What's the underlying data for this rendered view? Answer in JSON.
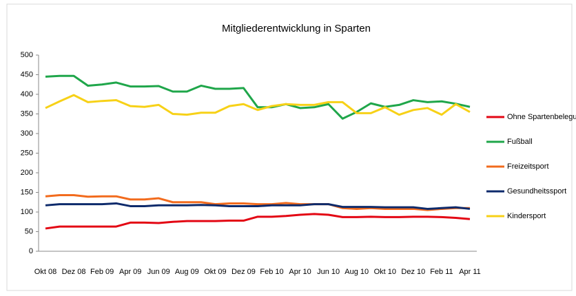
{
  "chart_data": {
    "type": "line",
    "title": "Mitgliederentwicklung in Sparten",
    "categories": [
      "Okt 08",
      null,
      "Dez 08",
      null,
      "Feb 09",
      null,
      "Apr 09",
      null,
      "Jun 09",
      null,
      "Aug 09",
      null,
      "Okt 09",
      null,
      "Dez 09",
      null,
      "Feb 10",
      null,
      "Apr 10",
      null,
      "Jun 10",
      null,
      "Aug 10",
      null,
      "Okt 10",
      null,
      "Dez 10",
      null,
      "Feb 11",
      null,
      "Apr 11"
    ],
    "series": [
      {
        "name": "Ohne Spartenbelegung",
        "color": "#e30613",
        "values": [
          58,
          63,
          63,
          63,
          63,
          63,
          73,
          73,
          72,
          75,
          77,
          77,
          77,
          78,
          78,
          88,
          88,
          90,
          93,
          95,
          93,
          87,
          87,
          88,
          87,
          87,
          88,
          88,
          87,
          85,
          82
        ]
      },
      {
        "name": "Fußball",
        "color": "#1fa64a",
        "values": [
          445,
          447,
          447,
          422,
          425,
          430,
          420,
          420,
          421,
          407,
          407,
          422,
          414,
          414,
          416,
          367,
          367,
          375,
          365,
          367,
          375,
          338,
          355,
          377,
          368,
          373,
          385,
          380,
          382,
          376,
          368
        ]
      },
      {
        "name": "Freizeitsport",
        "color": "#f26b1d",
        "values": [
          140,
          143,
          143,
          139,
          140,
          140,
          132,
          132,
          135,
          125,
          125,
          125,
          120,
          122,
          122,
          120,
          120,
          123,
          120,
          120,
          120,
          110,
          108,
          110,
          108,
          108,
          108,
          105,
          108,
          110,
          110
        ]
      },
      {
        "name": "Gesundheitssport",
        "color": "#0d2a6b",
        "values": [
          117,
          120,
          120,
          120,
          120,
          122,
          115,
          115,
          117,
          117,
          117,
          118,
          117,
          115,
          115,
          115,
          117,
          117,
          117,
          120,
          120,
          113,
          113,
          113,
          112,
          112,
          112,
          108,
          110,
          112,
          108
        ]
      },
      {
        "name": "Kindersport",
        "color": "#f7d117",
        "values": [
          365,
          382,
          398,
          380,
          383,
          385,
          370,
          368,
          373,
          350,
          348,
          353,
          353,
          370,
          375,
          360,
          370,
          375,
          373,
          373,
          380,
          380,
          352,
          352,
          367,
          348,
          360,
          365,
          348,
          375,
          355
        ]
      }
    ],
    "ylim": [
      0,
      500
    ],
    "yticks": [
      0,
      50,
      100,
      150,
      200,
      250,
      300,
      350,
      400,
      450,
      500
    ],
    "legend": "right"
  }
}
